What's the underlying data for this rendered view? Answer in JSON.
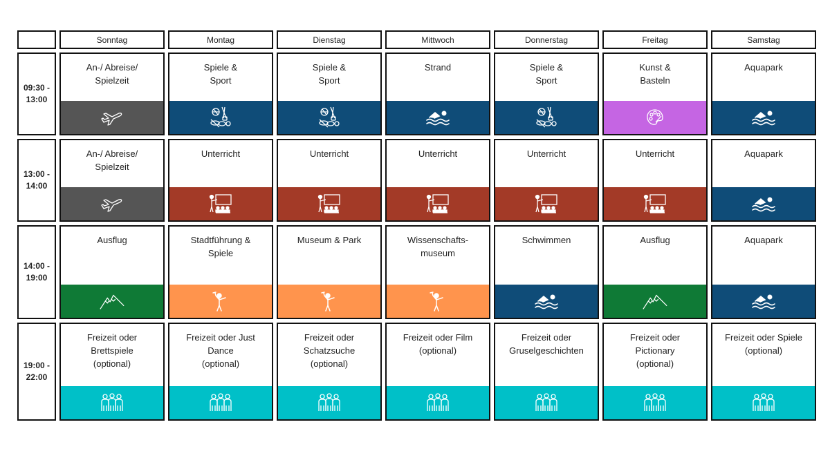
{
  "days": [
    "Sonntag",
    "Montag",
    "Dienstag",
    "Mittwoch",
    "Donnerstag",
    "Freitag",
    "Samstag"
  ],
  "colors": {
    "travel": "#555555",
    "sport": "#0f4c78",
    "swim": "#0f4c78",
    "art": "#c565e3",
    "lesson": "#a33a27",
    "hike": "#0f7a36",
    "guide": "#ff944d",
    "group": "#00c0c8"
  },
  "rows": [
    {
      "time": "09:30 -\n13:00",
      "cells": [
        {
          "text": "An-/ Abreise/\nSpielzeit",
          "category": "travel",
          "icon": "airplane-icon"
        },
        {
          "text": "Spiele &\nSport",
          "category": "sport",
          "icon": "sports-equipment-icon"
        },
        {
          "text": "Spiele &\nSport",
          "category": "sport",
          "icon": "sports-equipment-icon"
        },
        {
          "text": "Strand",
          "category": "swim",
          "icon": "swimmer-icon"
        },
        {
          "text": "Spiele &\nSport",
          "category": "sport",
          "icon": "sports-equipment-icon"
        },
        {
          "text": "Kunst &\nBasteln",
          "category": "art",
          "icon": "palette-icon"
        },
        {
          "text": "Aquapark",
          "category": "swim",
          "icon": "swimmer-icon"
        }
      ]
    },
    {
      "time": "13:00 -\n14:00",
      "cells": [
        {
          "text": "An-/ Abreise/\nSpielzeit",
          "category": "travel",
          "icon": "airplane-icon"
        },
        {
          "text": "Unterricht",
          "category": "lesson",
          "icon": "classroom-icon"
        },
        {
          "text": "Unterricht",
          "category": "lesson",
          "icon": "classroom-icon"
        },
        {
          "text": "Unterricht",
          "category": "lesson",
          "icon": "classroom-icon"
        },
        {
          "text": "Unterricht",
          "category": "lesson",
          "icon": "classroom-icon"
        },
        {
          "text": "Unterricht",
          "category": "lesson",
          "icon": "classroom-icon"
        },
        {
          "text": "Aquapark",
          "category": "swim",
          "icon": "swimmer-icon"
        }
      ]
    },
    {
      "time": "14:00 -\n19:00",
      "cells": [
        {
          "text": "Ausflug",
          "category": "hike",
          "icon": "mountain-icon"
        },
        {
          "text": "Stadtführung &\nSpiele",
          "category": "guide",
          "icon": "tour-guide-icon"
        },
        {
          "text": "Museum & Park",
          "category": "guide",
          "icon": "tour-guide-icon"
        },
        {
          "text": "Wissenschafts-\nmuseum",
          "category": "guide",
          "icon": "tour-guide-icon"
        },
        {
          "text": "Schwimmen",
          "category": "swim",
          "icon": "swimmer-icon"
        },
        {
          "text": "Ausflug",
          "category": "hike",
          "icon": "mountain-icon"
        },
        {
          "text": "Aquapark",
          "category": "swim",
          "icon": "swimmer-icon"
        }
      ]
    },
    {
      "time": "19:00 -\n22:00",
      "cells": [
        {
          "text": "Freizeit oder\nBrettspiele\n(optional)",
          "category": "group",
          "icon": "group-icon"
        },
        {
          "text": "Freizeit oder Just\nDance\n(optional)",
          "category": "group",
          "icon": "group-icon"
        },
        {
          "text": "Freizeit oder\nSchatzsuche\n(optional)",
          "category": "group",
          "icon": "group-icon"
        },
        {
          "text": "Freizeit oder Film\n(optional)",
          "category": "group",
          "icon": "group-icon"
        },
        {
          "text": "Freizeit oder\nGruselgeschichten",
          "category": "group",
          "icon": "group-icon"
        },
        {
          "text": "Freizeit oder\nPictionary\n(optional)",
          "category": "group",
          "icon": "group-icon"
        },
        {
          "text": "Freizeit oder Spiele\n(optional)",
          "category": "group",
          "icon": "group-icon"
        }
      ]
    }
  ]
}
